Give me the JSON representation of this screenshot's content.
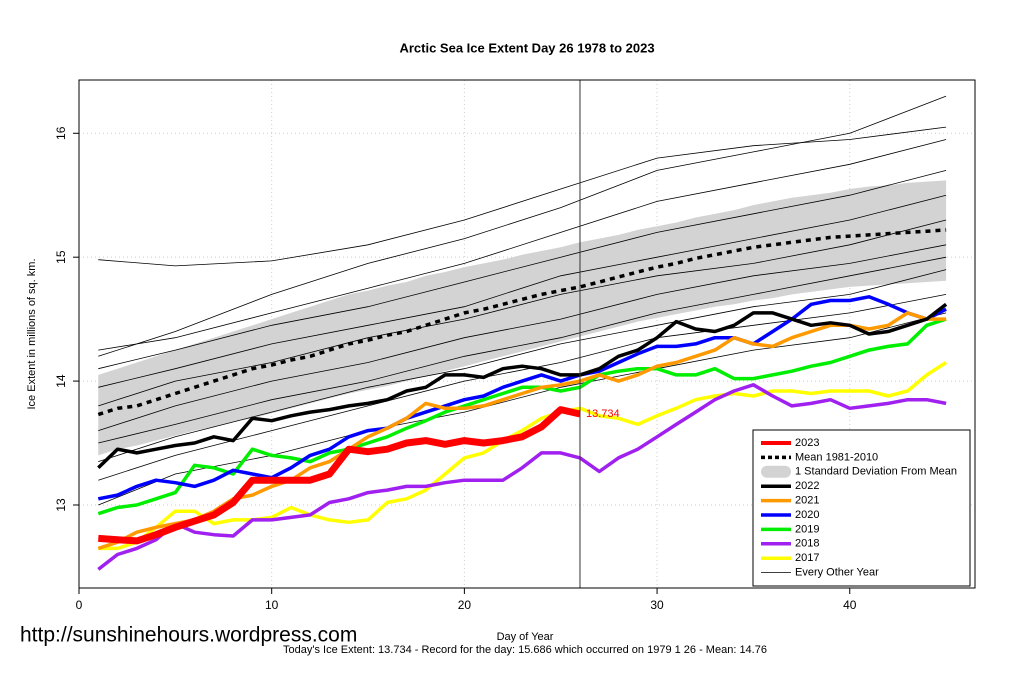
{
  "chart_data": {
    "type": "line",
    "title": "Arctic Sea Ice Extent Day 26 1978 to 2023",
    "xlabel": "Day of Year",
    "ylabel": "Ice Extent in millions of sq. km.",
    "watermark": "http://sunshinehours.wordpress.com",
    "footer": "Today's Ice Extent: 13.734  - Record for the day: 15.686 which occurred on 1979 1 26  - Mean: 14.76",
    "annotation": "13.734",
    "marker_day": 26,
    "xlim": [
      0,
      46.5
    ],
    "ylim": [
      12.33,
      16.43
    ],
    "xticks": [
      0,
      10,
      20,
      30,
      40
    ],
    "yticks": [
      13,
      14,
      15,
      16
    ],
    "grid": true,
    "legend": "bottom-right",
    "x": [
      1,
      2,
      3,
      4,
      5,
      6,
      7,
      8,
      9,
      10,
      11,
      12,
      13,
      14,
      15,
      16,
      17,
      18,
      19,
      20,
      21,
      22,
      23,
      24,
      25,
      26,
      27,
      28,
      29,
      30,
      31,
      32,
      33,
      34,
      35,
      36,
      37,
      38,
      39,
      40,
      41,
      42,
      43,
      44,
      45
    ],
    "series": [
      {
        "name": "2023",
        "color": "#ff0000",
        "width": 7,
        "values": [
          12.73,
          12.72,
          12.71,
          12.76,
          12.82,
          12.87,
          12.92,
          13.02,
          13.2,
          13.2,
          13.2,
          13.2,
          13.25,
          13.45,
          13.43,
          13.45,
          13.5,
          13.52,
          13.49,
          13.52,
          13.5,
          13.52,
          13.55,
          13.63,
          13.77,
          13.734,
          null,
          null,
          null,
          null,
          null,
          null,
          null,
          null,
          null,
          null,
          null,
          null,
          null,
          null,
          null,
          null,
          null,
          null,
          null
        ]
      },
      {
        "name": "Mean 1981-2010",
        "color": "#000000",
        "width": 3.5,
        "dash": true,
        "values": [
          13.73,
          13.78,
          13.8,
          13.85,
          13.9,
          13.95,
          14.0,
          14.05,
          14.1,
          14.13,
          14.17,
          14.2,
          14.25,
          14.3,
          14.33,
          14.37,
          14.4,
          14.45,
          14.5,
          14.55,
          14.58,
          14.62,
          14.66,
          14.7,
          14.73,
          14.76,
          14.8,
          14.84,
          14.88,
          14.92,
          14.95,
          14.99,
          15.02,
          15.05,
          15.08,
          15.1,
          15.12,
          15.14,
          15.16,
          15.17,
          15.18,
          15.19,
          15.2,
          15.21,
          15.22
        ]
      },
      {
        "name": "1 Standard Deviation From Mean",
        "color": "#d3d3d3",
        "band": true,
        "upper": [
          14.05,
          14.1,
          14.15,
          14.2,
          14.25,
          14.3,
          14.35,
          14.4,
          14.45,
          14.5,
          14.55,
          14.6,
          14.65,
          14.7,
          14.73,
          14.77,
          14.8,
          14.85,
          14.88,
          14.92,
          14.95,
          14.98,
          15.02,
          15.05,
          15.08,
          15.12,
          15.15,
          15.18,
          15.22,
          15.25,
          15.28,
          15.32,
          15.35,
          15.38,
          15.42,
          15.45,
          15.48,
          15.5,
          15.52,
          15.55,
          15.57,
          15.58,
          15.6,
          15.61,
          15.62
        ],
        "lower": [
          13.4,
          13.45,
          13.48,
          13.52,
          13.56,
          13.6,
          13.63,
          13.67,
          13.7,
          13.74,
          13.78,
          13.82,
          13.86,
          13.9,
          13.93,
          13.96,
          14.0,
          14.04,
          14.08,
          14.12,
          14.16,
          14.2,
          14.24,
          14.28,
          14.32,
          14.36,
          14.4,
          14.44,
          14.48,
          14.51,
          14.54,
          14.57,
          14.6,
          14.62,
          14.65,
          14.67,
          14.7,
          14.72,
          14.74,
          14.76,
          14.77,
          14.78,
          14.79,
          14.8,
          14.81
        ]
      },
      {
        "name": "2022",
        "color": "#000000",
        "width": 3.5,
        "values": [
          13.3,
          13.45,
          13.42,
          13.45,
          13.48,
          13.5,
          13.55,
          13.52,
          13.7,
          13.68,
          13.72,
          13.75,
          13.77,
          13.8,
          13.82,
          13.85,
          13.92,
          13.95,
          14.05,
          14.05,
          14.03,
          14.1,
          14.12,
          14.1,
          14.05,
          14.05,
          14.1,
          14.2,
          14.25,
          14.35,
          14.48,
          14.42,
          14.4,
          14.45,
          14.55,
          14.55,
          14.5,
          14.45,
          14.47,
          14.45,
          14.38,
          14.4,
          14.45,
          14.5,
          14.62
        ]
      },
      {
        "name": "2021",
        "color": "#ff9900",
        "width": 3.5,
        "values": [
          12.65,
          12.7,
          12.78,
          12.82,
          12.85,
          12.88,
          12.95,
          13.05,
          13.08,
          13.15,
          13.2,
          13.3,
          13.35,
          13.45,
          13.55,
          13.62,
          13.7,
          13.82,
          13.78,
          13.78,
          13.8,
          13.85,
          13.9,
          13.95,
          13.97,
          14.0,
          14.05,
          14.0,
          14.05,
          14.12,
          14.15,
          14.2,
          14.25,
          14.35,
          14.3,
          14.28,
          14.35,
          14.4,
          14.45,
          14.45,
          14.42,
          14.45,
          14.55,
          14.5,
          14.5
        ]
      },
      {
        "name": "2020",
        "color": "#0000ff",
        "width": 3.5,
        "values": [
          13.05,
          13.08,
          13.15,
          13.2,
          13.18,
          13.15,
          13.2,
          13.28,
          13.25,
          13.22,
          13.3,
          13.4,
          13.45,
          13.55,
          13.6,
          13.62,
          13.7,
          13.75,
          13.8,
          13.85,
          13.88,
          13.95,
          14.0,
          14.05,
          14.0,
          14.05,
          14.08,
          14.15,
          14.22,
          14.28,
          14.28,
          14.3,
          14.35,
          14.35,
          14.3,
          14.4,
          14.5,
          14.62,
          14.65,
          14.65,
          14.68,
          14.62,
          14.55,
          14.5,
          14.58
        ]
      },
      {
        "name": "2019",
        "color": "#00ee00",
        "width": 3.5,
        "values": [
          12.93,
          12.98,
          13.0,
          13.05,
          13.1,
          13.32,
          13.3,
          13.25,
          13.45,
          13.4,
          13.38,
          13.35,
          13.42,
          13.45,
          13.5,
          13.55,
          13.62,
          13.68,
          13.75,
          13.8,
          13.85,
          13.9,
          13.95,
          13.95,
          13.92,
          13.95,
          14.05,
          14.08,
          14.1,
          14.1,
          14.05,
          14.05,
          14.1,
          14.02,
          14.02,
          14.05,
          14.08,
          14.12,
          14.15,
          14.2,
          14.25,
          14.28,
          14.3,
          14.45,
          14.5
        ]
      },
      {
        "name": "2018",
        "color": "#a020f0",
        "width": 3.5,
        "values": [
          12.48,
          12.6,
          12.65,
          12.72,
          12.85,
          12.78,
          12.76,
          12.75,
          12.88,
          12.88,
          12.9,
          12.92,
          13.02,
          13.05,
          13.1,
          13.12,
          13.15,
          13.15,
          13.18,
          13.2,
          13.2,
          13.2,
          13.3,
          13.42,
          13.42,
          13.38,
          13.27,
          13.38,
          13.45,
          13.55,
          13.65,
          13.75,
          13.85,
          13.92,
          13.97,
          13.88,
          13.8,
          13.82,
          13.85,
          13.78,
          13.8,
          13.82,
          13.85,
          13.85,
          13.82
        ]
      },
      {
        "name": "2017",
        "color": "#ffff00",
        "width": 3.5,
        "values": [
          12.65,
          12.65,
          12.7,
          12.82,
          12.95,
          12.95,
          12.85,
          12.88,
          12.88,
          12.9,
          12.98,
          12.92,
          12.88,
          12.86,
          12.88,
          13.02,
          13.05,
          13.12,
          13.25,
          13.38,
          13.42,
          13.52,
          13.6,
          13.7,
          13.75,
          13.78,
          13.72,
          13.7,
          13.65,
          13.72,
          13.78,
          13.85,
          13.88,
          13.9,
          13.88,
          13.92,
          13.92,
          13.9,
          13.92,
          13.92,
          13.92,
          13.88,
          13.92,
          14.05,
          14.15
        ]
      },
      {
        "name": "Every Other Year",
        "color": "#000000",
        "width": 0.8,
        "x": [
          1,
          5,
          10,
          15,
          20,
          25,
          30,
          35,
          40,
          45
        ],
        "lines": [
          [
            14.2,
            14.4,
            14.7,
            14.95,
            15.15,
            15.4,
            15.7,
            15.85,
            16.0,
            16.3
          ],
          [
            14.98,
            14.93,
            14.97,
            15.1,
            15.3,
            15.55,
            15.8,
            15.9,
            15.95,
            16.05
          ],
          [
            14.25,
            14.35,
            14.55,
            14.75,
            14.95,
            15.2,
            15.45,
            15.6,
            15.75,
            15.95
          ],
          [
            14.1,
            14.25,
            14.45,
            14.6,
            14.8,
            15.0,
            15.2,
            15.35,
            15.5,
            15.7
          ],
          [
            13.95,
            14.1,
            14.3,
            14.45,
            14.6,
            14.85,
            15.0,
            15.15,
            15.3,
            15.5
          ],
          [
            13.8,
            14.0,
            14.15,
            14.35,
            14.5,
            14.7,
            14.85,
            14.95,
            15.1,
            15.3
          ],
          [
            13.6,
            13.8,
            14.0,
            14.15,
            14.35,
            14.5,
            14.7,
            14.85,
            14.95,
            15.1
          ],
          [
            13.5,
            13.65,
            13.85,
            14.0,
            14.2,
            14.35,
            14.55,
            14.7,
            14.85,
            15.0
          ],
          [
            13.2,
            13.4,
            13.6,
            13.8,
            14.0,
            14.15,
            14.35,
            14.45,
            14.55,
            14.7
          ],
          [
            13.0,
            13.25,
            13.4,
            13.6,
            13.75,
            13.95,
            14.1,
            14.25,
            14.35,
            14.55
          ],
          [
            13.35,
            13.55,
            13.75,
            13.95,
            14.1,
            14.3,
            14.45,
            14.6,
            14.7,
            14.9
          ]
        ]
      }
    ]
  }
}
